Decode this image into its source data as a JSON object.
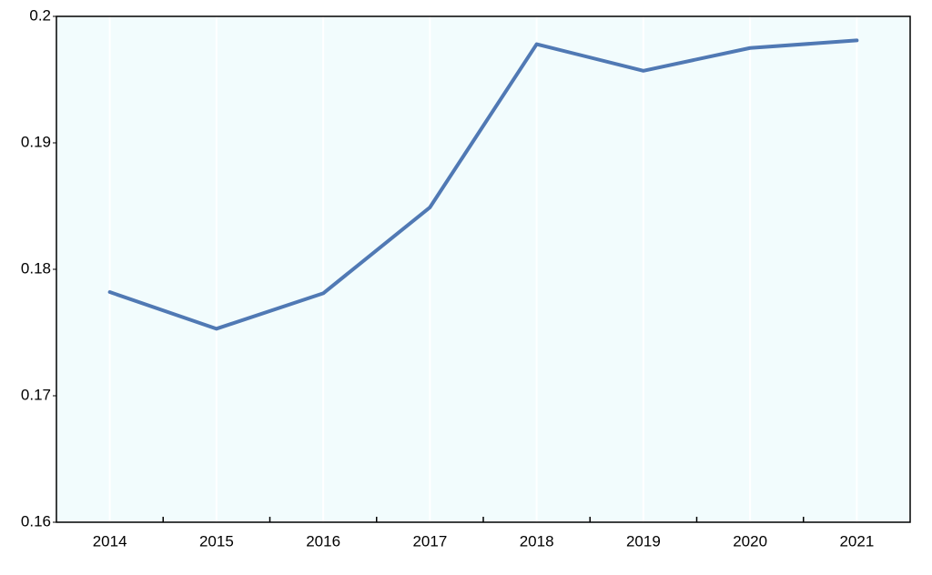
{
  "chart_data": {
    "type": "line",
    "categories": [
      "2014",
      "2015",
      "2016",
      "2017",
      "2018",
      "2019",
      "2020",
      "2021"
    ],
    "series": [
      {
        "color": "#5079b4",
        "values": [
          0.1782,
          0.1753,
          0.1781,
          0.1849,
          0.1978,
          0.1957,
          0.1975,
          0.1981
        ]
      }
    ],
    "ylim": [
      0.16,
      0.2
    ],
    "yticks": [
      0.16,
      0.17,
      0.18,
      0.19,
      0.2
    ],
    "background": "#f2fcfd"
  }
}
